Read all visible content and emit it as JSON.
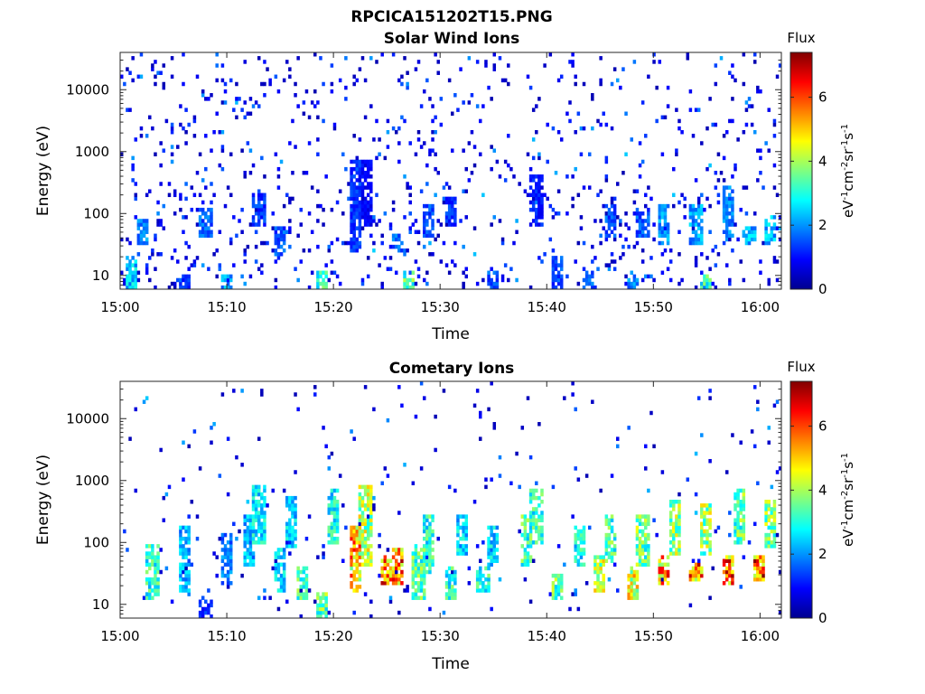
{
  "figure": {
    "title": "RPCICA151202T15.PNG"
  },
  "chart_data": [
    {
      "type": "heatmap",
      "title": "Solar Wind Ions",
      "xlabel": "Time",
      "ylabel": "Energy (eV)",
      "x_ticks": [
        "15:00",
        "15:10",
        "15:20",
        "15:30",
        "15:40",
        "15:50",
        "16:00"
      ],
      "x_range": [
        "15:00",
        "16:02"
      ],
      "y_ticks": [
        "10",
        "100",
        "1000",
        "10000"
      ],
      "y_scale": "log",
      "y_range": [
        6,
        40000
      ],
      "colorbar": {
        "title": "Flux",
        "unit": "eV-1cm-2sr-1s-1",
        "ticks": [
          "0",
          "2",
          "4",
          "6"
        ],
        "range": [
          0,
          7.4
        ],
        "colormap": "jet"
      },
      "noise_level": 1.1,
      "background_event_rate": 0.07,
      "events": [
        {
          "time": "15:01",
          "e_low": 6,
          "e_high": 20,
          "flux": 2.4
        },
        {
          "time": "15:02",
          "e_low": 30,
          "e_high": 80,
          "flux": 1.8
        },
        {
          "time": "15:06",
          "e_low": 6,
          "e_high": 10,
          "flux": 1.4
        },
        {
          "time": "15:08",
          "e_low": 40,
          "e_high": 120,
          "flux": 1.6
        },
        {
          "time": "15:10",
          "e_low": 6,
          "e_high": 10,
          "flux": 2.0
        },
        {
          "time": "15:13",
          "e_low": 60,
          "e_high": 250,
          "flux": 1.3
        },
        {
          "time": "15:15",
          "e_low": 20,
          "e_high": 60,
          "flux": 1.5
        },
        {
          "time": "15:19",
          "e_low": 6,
          "e_high": 12,
          "flux": 3.0
        },
        {
          "time": "15:22",
          "e_low": 25,
          "e_high": 700,
          "flux": 1.3
        },
        {
          "time": "15:23",
          "e_low": 60,
          "e_high": 700,
          "flux": 0.9
        },
        {
          "time": "15:26",
          "e_low": 25,
          "e_high": 50,
          "flux": 1.6
        },
        {
          "time": "15:27",
          "e_low": 6,
          "e_high": 12,
          "flux": 3.2
        },
        {
          "time": "15:29",
          "e_low": 40,
          "e_high": 150,
          "flux": 1.4
        },
        {
          "time": "15:31",
          "e_low": 60,
          "e_high": 200,
          "flux": 1.3
        },
        {
          "time": "15:35",
          "e_low": 6,
          "e_high": 12,
          "flux": 1.5
        },
        {
          "time": "15:39",
          "e_low": 60,
          "e_high": 400,
          "flux": 1.1
        },
        {
          "time": "15:41",
          "e_low": 6,
          "e_high": 20,
          "flux": 1.4
        },
        {
          "time": "15:44",
          "e_low": 6,
          "e_high": 12,
          "flux": 1.6
        },
        {
          "time": "15:46",
          "e_low": 40,
          "e_high": 150,
          "flux": 1.5
        },
        {
          "time": "15:48",
          "e_low": 6,
          "e_high": 12,
          "flux": 1.8
        },
        {
          "time": "15:49",
          "e_low": 40,
          "e_high": 120,
          "flux": 1.5
        },
        {
          "time": "15:51",
          "e_low": 30,
          "e_high": 150,
          "flux": 2.1
        },
        {
          "time": "15:54",
          "e_low": 30,
          "e_high": 150,
          "flux": 2.0
        },
        {
          "time": "15:55",
          "e_low": 6,
          "e_high": 10,
          "flux": 3.0
        },
        {
          "time": "15:57",
          "e_low": 30,
          "e_high": 300,
          "flux": 1.8
        },
        {
          "time": "15:59",
          "e_low": 30,
          "e_high": 60,
          "flux": 2.2
        },
        {
          "time": "16:01",
          "e_low": 30,
          "e_high": 100,
          "flux": 2.3
        }
      ]
    },
    {
      "type": "heatmap",
      "title": "Cometary Ions",
      "xlabel": "Time",
      "ylabel": "Energy (eV)",
      "x_ticks": [
        "15:00",
        "15:10",
        "15:20",
        "15:30",
        "15:40",
        "15:50",
        "16:00"
      ],
      "x_range": [
        "15:00",
        "16:02"
      ],
      "y_ticks": [
        "10",
        "100",
        "1000",
        "10000"
      ],
      "y_scale": "log",
      "y_range": [
        6,
        40000
      ],
      "colorbar": {
        "title": "Flux",
        "unit": "eV-1cm-2sr-1s-1",
        "ticks": [
          "0",
          "2",
          "4",
          "6"
        ],
        "range": [
          0,
          7.4
        ],
        "colormap": "jet"
      },
      "noise_level": 1.1,
      "background_event_rate": 0.022,
      "events": [
        {
          "time": "15:03",
          "e_low": 12,
          "e_high": 100,
          "flux": 3.0
        },
        {
          "time": "15:06",
          "e_low": 15,
          "e_high": 200,
          "flux": 2.2
        },
        {
          "time": "15:08",
          "e_low": 6,
          "e_high": 12,
          "flux": 1.2
        },
        {
          "time": "15:10",
          "e_low": 20,
          "e_high": 150,
          "flux": 1.8
        },
        {
          "time": "15:12",
          "e_low": 40,
          "e_high": 300,
          "flux": 2.2
        },
        {
          "time": "15:13",
          "e_low": 100,
          "e_high": 800,
          "flux": 2.6
        },
        {
          "time": "15:15",
          "e_low": 15,
          "e_high": 80,
          "flux": 2.5
        },
        {
          "time": "15:16",
          "e_low": 80,
          "e_high": 600,
          "flux": 2.4
        },
        {
          "time": "15:17",
          "e_low": 12,
          "e_high": 40,
          "flux": 3.2
        },
        {
          "time": "15:19",
          "e_low": 6,
          "e_high": 15,
          "flux": 3.5
        },
        {
          "time": "15:20",
          "e_low": 100,
          "e_high": 700,
          "flux": 2.8
        },
        {
          "time": "15:22",
          "e_low": 15,
          "e_high": 200,
          "flux": 5.0
        },
        {
          "time": "15:23",
          "e_low": 40,
          "e_high": 800,
          "flux": 4.0
        },
        {
          "time": "15:25",
          "e_low": 20,
          "e_high": 60,
          "flux": 5.6
        },
        {
          "time": "15:26",
          "e_low": 20,
          "e_high": 80,
          "flux": 5.6
        },
        {
          "time": "15:28",
          "e_low": 12,
          "e_high": 100,
          "flux": 3.3
        },
        {
          "time": "15:29",
          "e_low": 30,
          "e_high": 300,
          "flux": 3.0
        },
        {
          "time": "15:31",
          "e_low": 12,
          "e_high": 40,
          "flux": 3.0
        },
        {
          "time": "15:32",
          "e_low": 60,
          "e_high": 300,
          "flux": 2.5
        },
        {
          "time": "15:34",
          "e_low": 15,
          "e_high": 40,
          "flux": 3.0
        },
        {
          "time": "15:35",
          "e_low": 40,
          "e_high": 200,
          "flux": 2.5
        },
        {
          "time": "15:38",
          "e_low": 40,
          "e_high": 300,
          "flux": 3.3
        },
        {
          "time": "15:39",
          "e_low": 100,
          "e_high": 700,
          "flux": 3.0
        },
        {
          "time": "15:41",
          "e_low": 12,
          "e_high": 30,
          "flux": 3.4
        },
        {
          "time": "15:43",
          "e_low": 40,
          "e_high": 200,
          "flux": 2.8
        },
        {
          "time": "15:45",
          "e_low": 15,
          "e_high": 60,
          "flux": 4.0
        },
        {
          "time": "15:46",
          "e_low": 50,
          "e_high": 300,
          "flux": 3.2
        },
        {
          "time": "15:48",
          "e_low": 12,
          "e_high": 40,
          "flux": 4.4
        },
        {
          "time": "15:49",
          "e_low": 40,
          "e_high": 300,
          "flux": 3.5
        },
        {
          "time": "15:51",
          "e_low": 20,
          "e_high": 60,
          "flux": 5.2
        },
        {
          "time": "15:52",
          "e_low": 60,
          "e_high": 500,
          "flux": 3.8
        },
        {
          "time": "15:54",
          "e_low": 25,
          "e_high": 50,
          "flux": 5.4
        },
        {
          "time": "15:55",
          "e_low": 60,
          "e_high": 400,
          "flux": 3.8
        },
        {
          "time": "15:57",
          "e_low": 20,
          "e_high": 60,
          "flux": 5.6
        },
        {
          "time": "15:58",
          "e_low": 100,
          "e_high": 700,
          "flux": 3.4
        },
        {
          "time": "16:00",
          "e_low": 25,
          "e_high": 60,
          "flux": 5.8
        },
        {
          "time": "16:01",
          "e_low": 80,
          "e_high": 500,
          "flux": 3.6
        }
      ]
    }
  ]
}
